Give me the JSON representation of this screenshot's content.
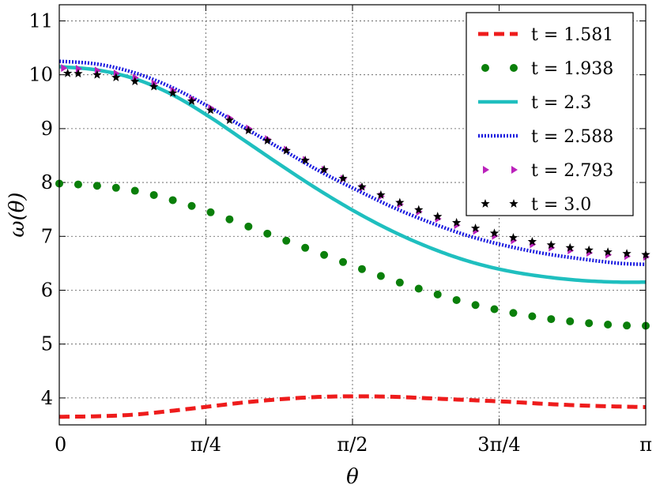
{
  "chart_data": {
    "type": "line",
    "title": "",
    "xlabel": "θ",
    "ylabel": "ω(θ)",
    "xlim": [
      0,
      3.14159
    ],
    "ylim": [
      3.5,
      11.3
    ],
    "grid": true,
    "legend_position": "top-right",
    "x_ticks": [
      {
        "value": 0,
        "label": "0"
      },
      {
        "value": 0.7854,
        "label": "π/4"
      },
      {
        "value": 1.5708,
        "label": "π/2"
      },
      {
        "value": 2.3562,
        "label": "3π/4"
      },
      {
        "value": 3.14159,
        "label": "π"
      }
    ],
    "y_ticks": [
      {
        "value": 4,
        "label": "4"
      },
      {
        "value": 5,
        "label": "5"
      },
      {
        "value": 6,
        "label": "6"
      },
      {
        "value": 7,
        "label": "7"
      },
      {
        "value": 8,
        "label": "8"
      },
      {
        "value": 9,
        "label": "9"
      },
      {
        "value": 10,
        "label": "10"
      },
      {
        "value": 11,
        "label": "11"
      }
    ],
    "series": [
      {
        "name": "t = 1.581",
        "color": "#ee1c1c",
        "style": "dashed",
        "x": [
          0,
          0.2,
          0.4,
          0.6,
          0.8,
          1.0,
          1.2,
          1.4,
          1.6,
          1.8,
          2.0,
          2.2,
          2.4,
          2.6,
          2.8,
          3.0,
          3.14159
        ],
        "y": [
          3.65,
          3.66,
          3.69,
          3.76,
          3.84,
          3.92,
          3.98,
          4.02,
          4.03,
          4.02,
          3.99,
          3.96,
          3.93,
          3.89,
          3.86,
          3.84,
          3.83
        ]
      },
      {
        "name": "t = 1.938",
        "color": "#0a7f0a",
        "style": "dots",
        "x": [
          0,
          0.2,
          0.4,
          0.6,
          0.8,
          1.0,
          1.2,
          1.4,
          1.6,
          1.8,
          2.0,
          2.2,
          2.4,
          2.6,
          2.8,
          3.0,
          3.14159
        ],
        "y": [
          7.98,
          7.94,
          7.85,
          7.68,
          7.46,
          7.2,
          6.94,
          6.68,
          6.42,
          6.17,
          5.95,
          5.75,
          5.6,
          5.48,
          5.4,
          5.35,
          5.34
        ]
      },
      {
        "name": "t = 2.3",
        "color": "#1fbfbf",
        "style": "solid",
        "x": [
          0,
          0.2,
          0.4,
          0.6,
          0.8,
          1.0,
          1.2,
          1.4,
          1.6,
          1.8,
          2.0,
          2.2,
          2.4,
          2.6,
          2.8,
          3.0,
          3.14159
        ],
        "y": [
          10.15,
          10.09,
          9.93,
          9.64,
          9.23,
          8.76,
          8.29,
          7.84,
          7.43,
          7.07,
          6.77,
          6.53,
          6.36,
          6.25,
          6.18,
          6.15,
          6.15
        ]
      },
      {
        "name": "t = 2.588",
        "color": "#1a1adf",
        "style": "dotted",
        "x": [
          0,
          0.2,
          0.4,
          0.6,
          0.8,
          1.0,
          1.2,
          1.4,
          1.6,
          1.8,
          2.0,
          2.2,
          2.4,
          2.6,
          2.8,
          3.0,
          3.14159
        ],
        "y": [
          10.25,
          10.2,
          10.04,
          9.77,
          9.41,
          9.0,
          8.6,
          8.2,
          7.85,
          7.52,
          7.24,
          7.0,
          6.82,
          6.68,
          6.58,
          6.5,
          6.48
        ]
      },
      {
        "name": "t = 2.793",
        "color": "#bb22bb",
        "style": "triangles",
        "x": [
          0,
          0.2,
          0.4,
          0.6,
          0.8,
          1.0,
          1.2,
          1.4,
          1.6,
          1.8,
          2.0,
          2.2,
          2.4,
          2.6,
          2.8,
          3.0,
          3.14159
        ],
        "y": [
          10.13,
          10.08,
          9.95,
          9.72,
          9.4,
          9.03,
          8.64,
          8.27,
          7.94,
          7.63,
          7.36,
          7.13,
          6.95,
          6.81,
          6.71,
          6.64,
          6.62
        ]
      },
      {
        "name": "t = 3.0",
        "color": "#000000",
        "style": "stars",
        "x": [
          0,
          0.2,
          0.4,
          0.6,
          0.8,
          1.0,
          1.2,
          1.4,
          1.6,
          1.8,
          2.0,
          2.2,
          2.4,
          2.6,
          2.8,
          3.0,
          3.14159
        ],
        "y": [
          10.03,
          10.0,
          9.88,
          9.67,
          9.36,
          8.99,
          8.62,
          8.27,
          7.95,
          7.66,
          7.4,
          7.18,
          7.0,
          6.86,
          6.76,
          6.69,
          6.66
        ]
      }
    ]
  }
}
